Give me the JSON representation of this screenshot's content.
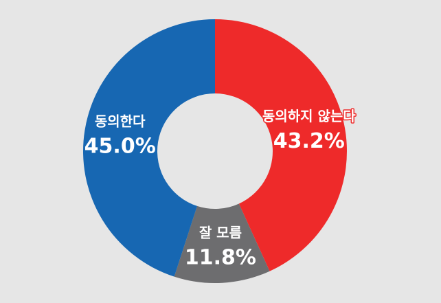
{
  "chart_data": {
    "type": "donut",
    "categories": [
      "동의하지 않는다",
      "잘 모름",
      "동의한다"
    ],
    "values": [
      43.2,
      11.8,
      45.0
    ],
    "value_labels": [
      "43.2%",
      "11.8%",
      "45.0%"
    ],
    "colors": [
      "#ee2a2a",
      "#6d6d6f",
      "#1767b2"
    ]
  }
}
